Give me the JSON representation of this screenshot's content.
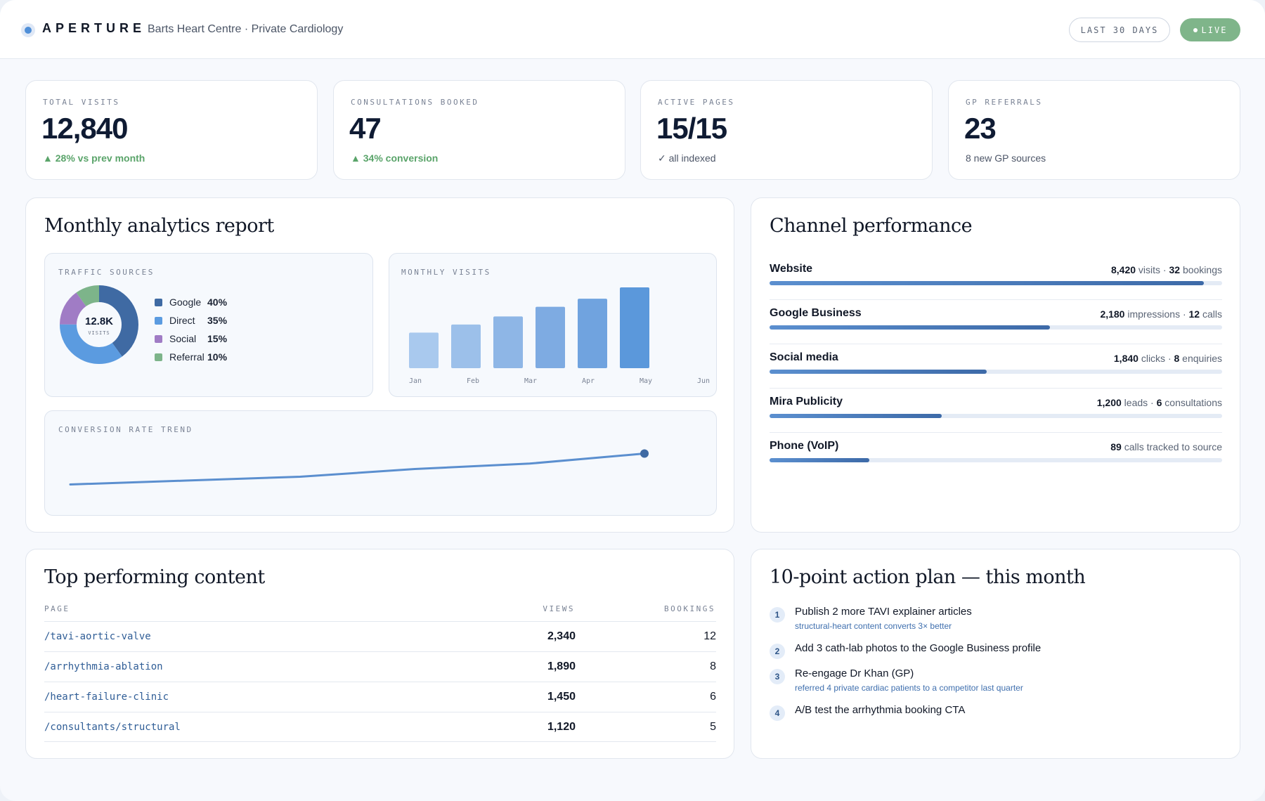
{
  "header": {
    "brand": "APERTURE",
    "subtitle": "Barts Heart Centre · Private Cardiology",
    "range_label": "LAST 30 DAYS",
    "live_label": "LIVE",
    "accent": "#4f8fd8",
    "live_color": "#7fb58a"
  },
  "kpis": [
    {
      "label": "TOTAL VISITS",
      "value": "12,840",
      "sub": "▲ 28% vs prev month",
      "tone": "green"
    },
    {
      "label": "CONSULTATIONS BOOKED",
      "value": "47",
      "sub": "▲ 34% conversion",
      "tone": "green"
    },
    {
      "label": "ACTIVE PAGES",
      "value": "15/15",
      "sub": "✓ all indexed",
      "tone": "grey"
    },
    {
      "label": "GP REFERRALS",
      "value": "23",
      "sub": "8 new GP sources",
      "tone": "grey"
    }
  ],
  "analytics": {
    "title": "Monthly analytics report",
    "traffic_label": "TRAFFIC SOURCES",
    "monthly_label": "MONTHLY VISITS",
    "conversion_label": "CONVERSION RATE TREND",
    "donut_center": "12.8K",
    "donut_center_sub": "VISITS"
  },
  "chart_data": [
    {
      "type": "pie",
      "title": "TRAFFIC SOURCES",
      "categories": [
        "Google",
        "Direct",
        "Social",
        "Referral"
      ],
      "values": [
        40,
        35,
        15,
        10
      ],
      "labels": [
        "40%",
        "35%",
        "15%",
        "10%"
      ],
      "colors": [
        "#3f6aa3",
        "#5b9be0",
        "#a07cc5",
        "#7db48a"
      ],
      "legend": "right"
    },
    {
      "type": "bar",
      "title": "MONTHLY VISITS",
      "categories": [
        "Jan",
        "Feb",
        "Mar",
        "Apr",
        "May",
        "Jun"
      ],
      "values": [
        44,
        54,
        64,
        76,
        86,
        100
      ],
      "ylim": [
        0,
        100
      ],
      "colors": [
        "#a9c9ee",
        "#9cc0ea",
        "#8eb6e6",
        "#7eabe2",
        "#70a3df",
        "#5b98db"
      ]
    },
    {
      "type": "line",
      "title": "CONVERSION RATE TREND",
      "x": [
        0,
        1,
        2,
        3,
        4,
        5
      ],
      "values": [
        5,
        10,
        15,
        25,
        32,
        45
      ],
      "ylim": [
        0,
        50
      ],
      "color": "#5b8fcf"
    }
  ],
  "channels": {
    "title": "Channel performance",
    "items": [
      {
        "name": "Website",
        "n1": "8,420",
        "t1": " visits · ",
        "n2": "32",
        "t2": " bookings",
        "level": 0.96
      },
      {
        "name": "Google Business",
        "n1": "2,180",
        "t1": " impressions · ",
        "n2": "12",
        "t2": " calls",
        "level": 0.62
      },
      {
        "name": "Social media",
        "n1": "1,840",
        "t1": " clicks · ",
        "n2": "8",
        "t2": " enquiries",
        "level": 0.48
      },
      {
        "name": "Mira Publicity",
        "n1": "1,200",
        "t1": " leads · ",
        "n2": "6",
        "t2": " consultations",
        "level": 0.38
      },
      {
        "name": "Phone (VoIP)",
        "n1": "89",
        "t1": " calls tracked to source",
        "n2": "",
        "t2": "",
        "level": 0.22
      }
    ]
  },
  "content": {
    "title": "Top performing content",
    "col_page": "PAGE",
    "col_views": "VIEWS",
    "col_bookings": "BOOKINGS",
    "rows": [
      {
        "page": "/tavi-aortic-valve",
        "views": "2,340",
        "bookings": "12"
      },
      {
        "page": "/arrhythmia-ablation",
        "views": "1,890",
        "bookings": "8"
      },
      {
        "page": "/heart-failure-clinic",
        "views": "1,450",
        "bookings": "6"
      },
      {
        "page": "/consultants/structural",
        "views": "1,120",
        "bookings": "5"
      }
    ]
  },
  "plan": {
    "title": "10-point action plan — this month",
    "items": [
      {
        "num": "1",
        "text": "Publish 2 more TAVI explainer articles",
        "note": "structural-heart content converts 3× better"
      },
      {
        "num": "2",
        "text": "Add 3 cath-lab photos to the Google Business profile",
        "note": ""
      },
      {
        "num": "3",
        "text": "Re-engage Dr Khan (GP)",
        "note": "referred 4 private cardiac patients to a competitor last quarter"
      },
      {
        "num": "4",
        "text": "A/B test the arrhythmia booking CTA",
        "note": ""
      }
    ]
  }
}
